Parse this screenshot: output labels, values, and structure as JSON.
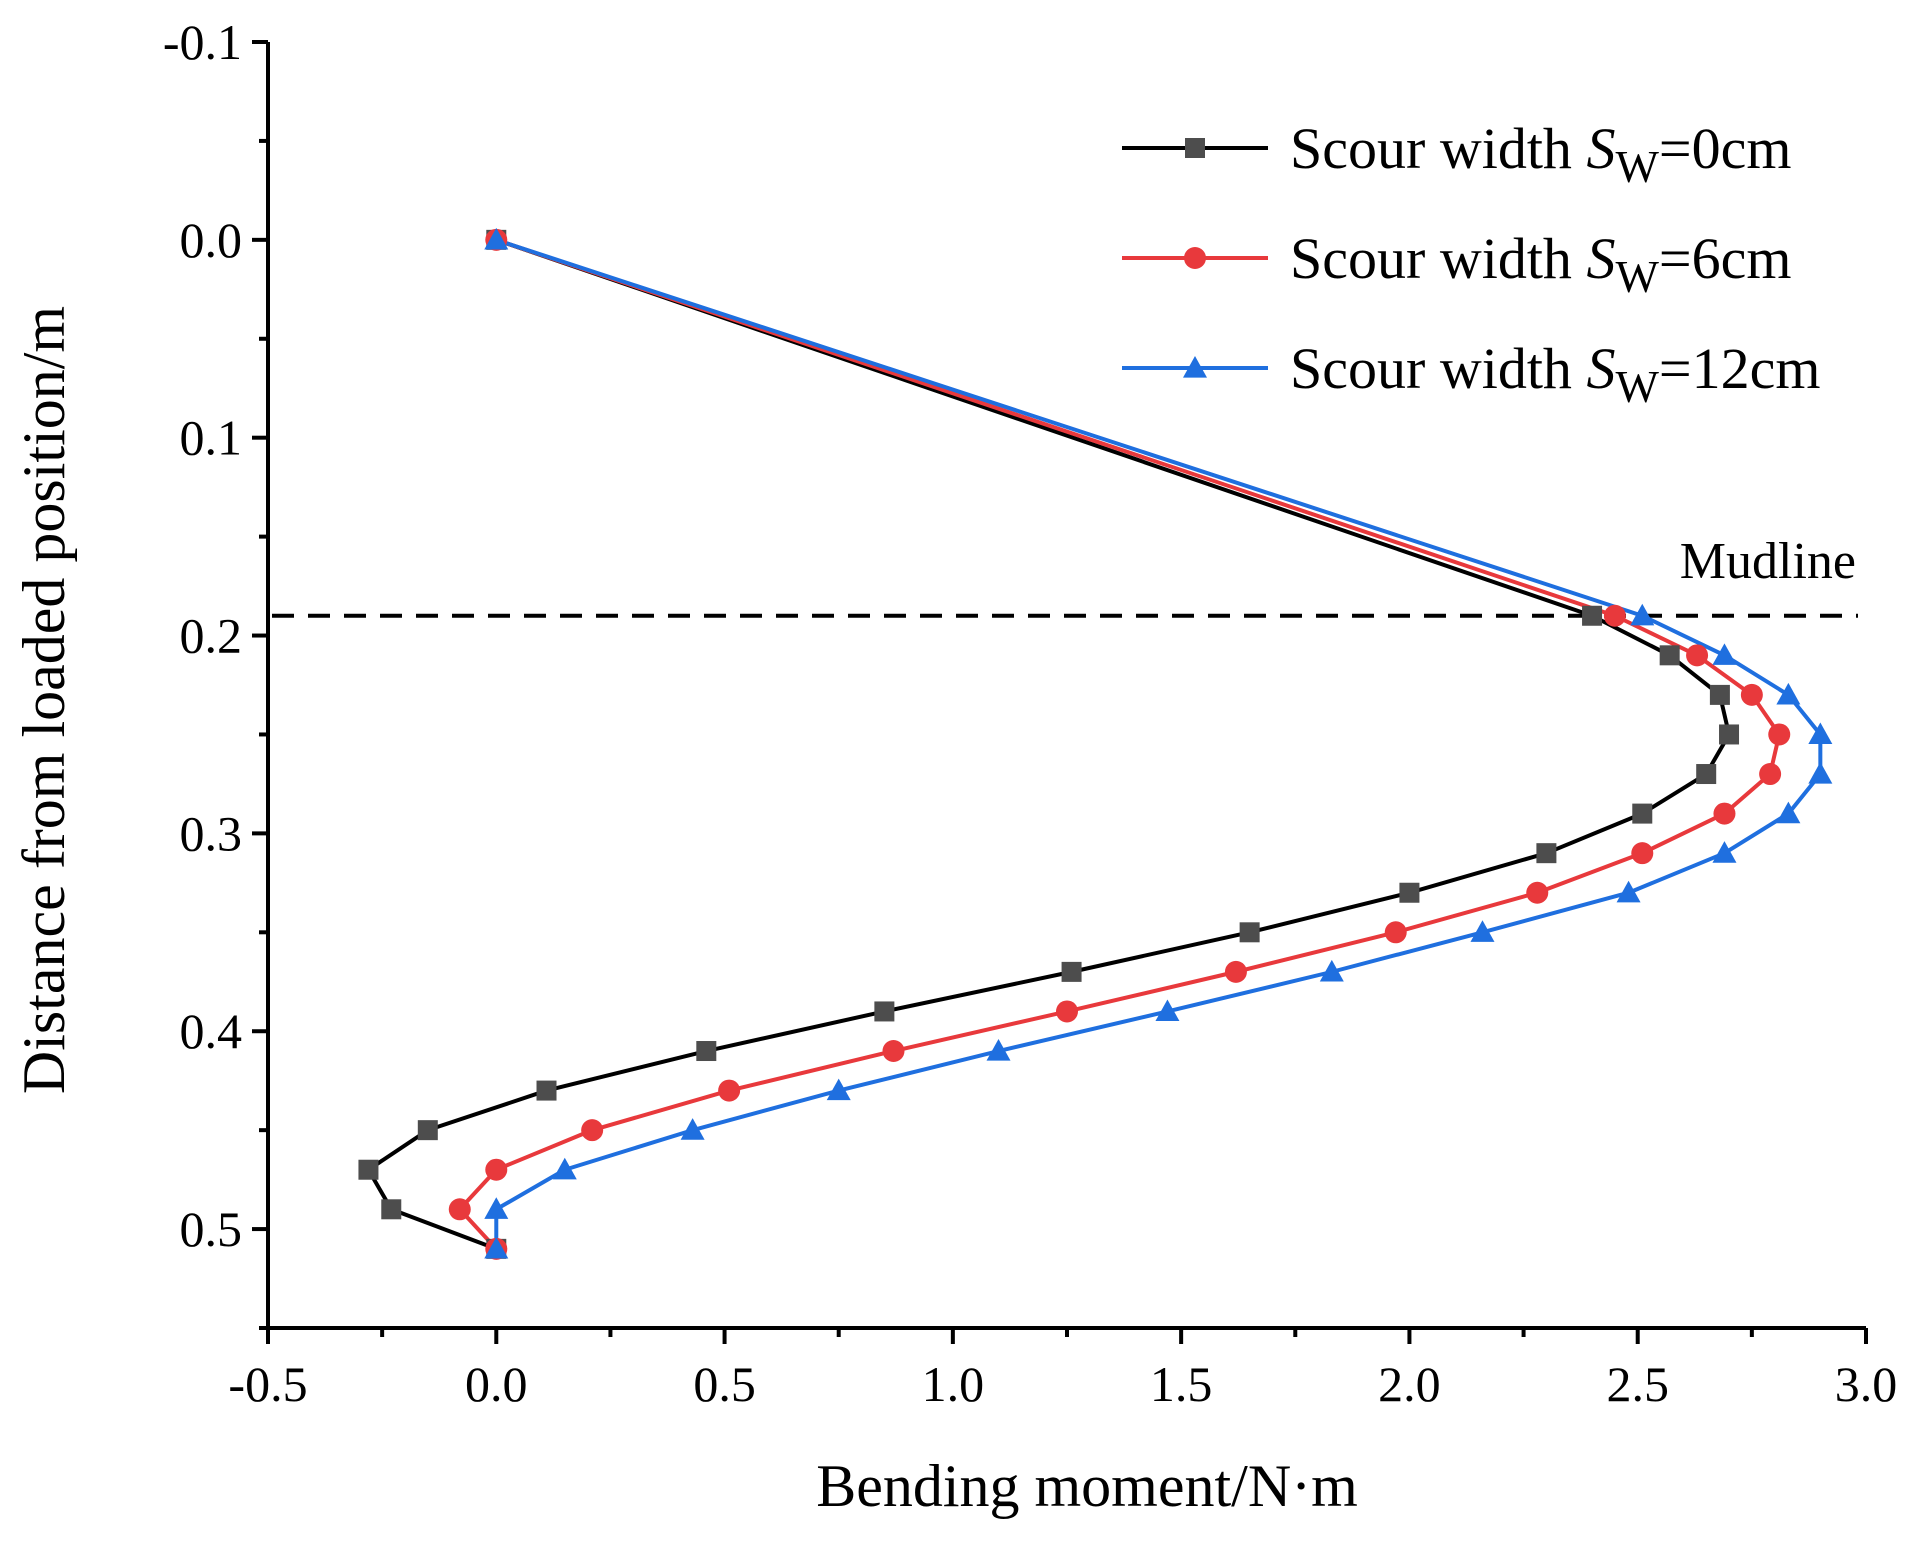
{
  "chart_data": {
    "type": "line",
    "xlabel": "Bending moment/N·m",
    "ylabel": "Distance from loaded position/m",
    "xlim": [
      -0.5,
      3.0
    ],
    "ylim": [
      -0.1,
      0.55
    ],
    "y_inverted": true,
    "x_major_ticks": [
      -0.5,
      0.0,
      0.5,
      1.0,
      1.5,
      2.0,
      2.5,
      3.0
    ],
    "x_tick_labels": [
      "-0.5",
      "0.0",
      "0.5",
      "1.0",
      "1.5",
      "2.0",
      "2.5",
      "3.0"
    ],
    "y_major_ticks": [
      -0.1,
      0.0,
      0.1,
      0.2,
      0.3,
      0.4,
      0.5
    ],
    "y_tick_labels": [
      "-0.1",
      "0.0",
      "0.1",
      "0.2",
      "0.3",
      "0.4",
      "0.5"
    ],
    "grid": false,
    "legend_position": "top-right",
    "annotation": {
      "text": "Mudline",
      "y": 0.19,
      "style": "dashed horizontal line"
    },
    "series": [
      {
        "name": "Scour width S",
        "subscript": "W",
        "suffix": "=0cm",
        "color": "#000000",
        "marker_color": "#4d4d4d",
        "marker": "square",
        "x": [
          0.0,
          2.4,
          2.57,
          2.68,
          2.7,
          2.65,
          2.51,
          2.3,
          2.0,
          1.65,
          1.26,
          0.85,
          0.46,
          0.11,
          -0.15,
          -0.28,
          -0.23,
          0.0
        ],
        "y": [
          0.0,
          0.19,
          0.21,
          0.23,
          0.25,
          0.27,
          0.29,
          0.31,
          0.33,
          0.35,
          0.37,
          0.39,
          0.41,
          0.43,
          0.45,
          0.47,
          0.49,
          0.51
        ]
      },
      {
        "name": "Scour width S",
        "subscript": "W",
        "suffix": "=6cm",
        "color": "#e8393c",
        "marker_color": "#e8393c",
        "marker": "circle",
        "x": [
          0.0,
          2.45,
          2.63,
          2.75,
          2.81,
          2.79,
          2.69,
          2.51,
          2.28,
          1.97,
          1.62,
          1.25,
          0.87,
          0.51,
          0.21,
          0.0,
          -0.08,
          0.0
        ],
        "y": [
          0.0,
          0.19,
          0.21,
          0.23,
          0.25,
          0.27,
          0.29,
          0.31,
          0.33,
          0.35,
          0.37,
          0.39,
          0.41,
          0.43,
          0.45,
          0.47,
          0.49,
          0.51
        ]
      },
      {
        "name": "Scour width S",
        "subscript": "W",
        "suffix": "=12cm",
        "color": "#1f6fdf",
        "marker_color": "#1f6fdf",
        "marker": "triangle",
        "x": [
          0.0,
          2.51,
          2.69,
          2.83,
          2.9,
          2.9,
          2.83,
          2.69,
          2.48,
          2.16,
          1.83,
          1.47,
          1.1,
          0.75,
          0.43,
          0.15,
          0.0,
          0.0
        ],
        "y": [
          0.0,
          0.19,
          0.21,
          0.23,
          0.25,
          0.27,
          0.29,
          0.31,
          0.33,
          0.35,
          0.37,
          0.39,
          0.41,
          0.43,
          0.45,
          0.47,
          0.49,
          0.51
        ]
      }
    ]
  }
}
